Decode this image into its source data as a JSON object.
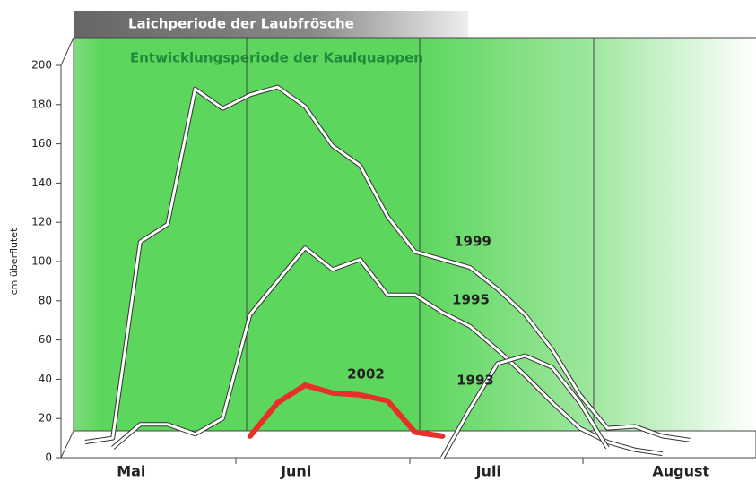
{
  "chart_data": {
    "type": "line",
    "banner": "Laichperiode der Laubfrösche",
    "annotation": "Entwicklungsperiode der Kaulquappen",
    "ylabel": "cm überflutet",
    "categories": [
      null,
      null,
      "Mai",
      null,
      null,
      null,
      null,
      null,
      "Juni",
      null,
      null,
      null,
      null,
      null,
      null,
      "Juli",
      null,
      null,
      null,
      null,
      null,
      null,
      "August",
      null
    ],
    "ylim": [
      0,
      200
    ],
    "yticks": [
      0,
      20,
      40,
      60,
      80,
      100,
      120,
      140,
      160,
      180,
      200
    ],
    "series": [
      {
        "name": "1999",
        "color": "#ffffff",
        "values": [
          8,
          10,
          110,
          119,
          188,
          178,
          185,
          189,
          179,
          159,
          149,
          123,
          105,
          101,
          97,
          86,
          73,
          55,
          32,
          15,
          16,
          11,
          9,
          null
        ]
      },
      {
        "name": "1995",
        "color": "#ffffff",
        "values": [
          null,
          5,
          17,
          17,
          12,
          20,
          73,
          90,
          107,
          96,
          101,
          83,
          83,
          74,
          67,
          55,
          42,
          28,
          15,
          8,
          4,
          2,
          null,
          null
        ]
      },
      {
        "name": "1993",
        "color": "#ffffff",
        "values": [
          null,
          null,
          null,
          null,
          null,
          null,
          null,
          null,
          null,
          null,
          null,
          null,
          null,
          0,
          25,
          48,
          52,
          46,
          28,
          5,
          null,
          null,
          null,
          null
        ]
      },
      {
        "name": "2002",
        "color": "#e8302a",
        "values": [
          null,
          null,
          null,
          null,
          null,
          null,
          11,
          28,
          37,
          33,
          32,
          29,
          13,
          11,
          null,
          null,
          null,
          null,
          null,
          null,
          null,
          null,
          null,
          null
        ]
      }
    ]
  }
}
